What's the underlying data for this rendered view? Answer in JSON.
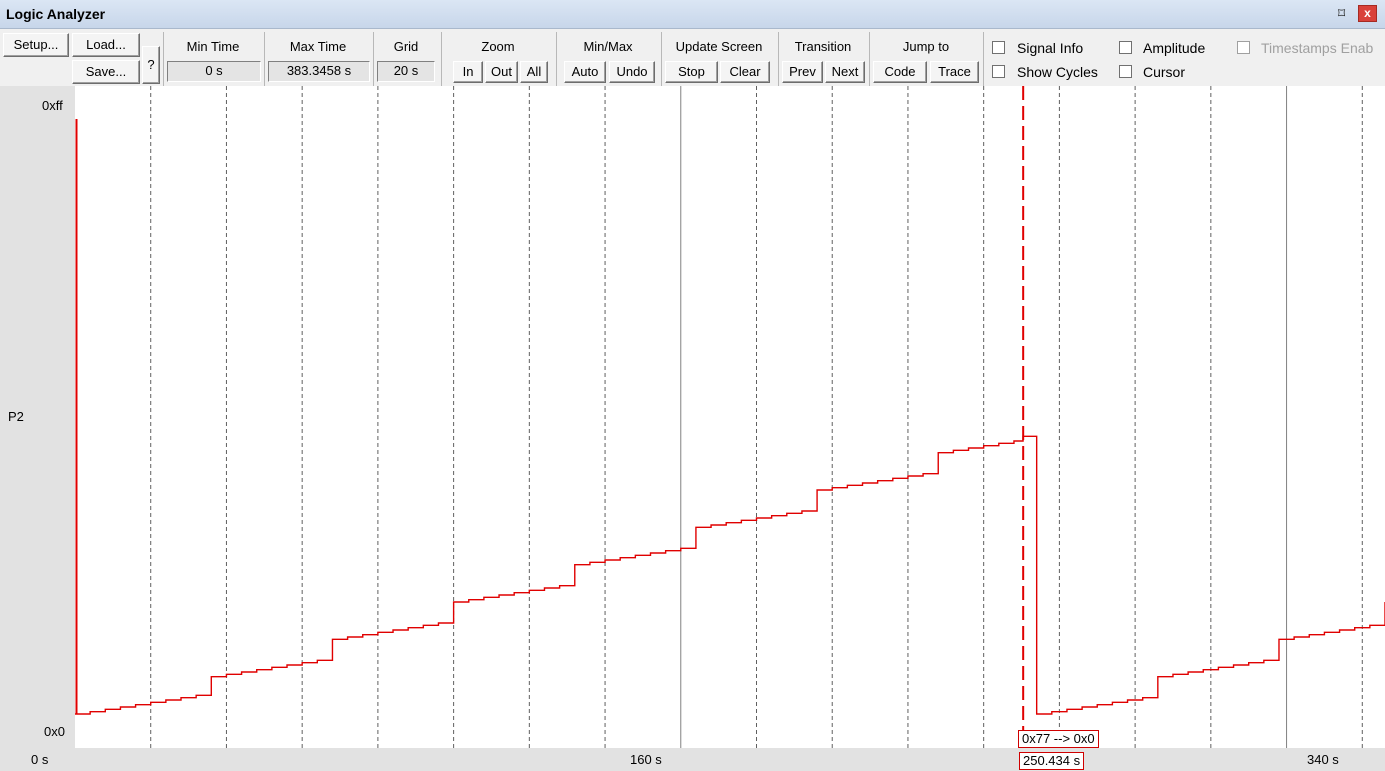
{
  "window": {
    "title": "Logic Analyzer",
    "pin_glyph": "⌑",
    "close_glyph": "x"
  },
  "toolbar": {
    "setup": "Setup...",
    "load": "Load...",
    "save": "Save...",
    "help": "?",
    "min_time": {
      "label": "Min Time",
      "value": "0 s"
    },
    "max_time": {
      "label": "Max Time",
      "value": "383.3458 s"
    },
    "grid": {
      "label": "Grid",
      "value": "20 s"
    },
    "zoom": {
      "label": "Zoom",
      "in": "In",
      "out": "Out",
      "all": "All"
    },
    "minmax": {
      "label": "Min/Max",
      "auto": "Auto",
      "undo": "Undo"
    },
    "update_screen": {
      "label": "Update Screen",
      "stop": "Stop",
      "clear": "Clear"
    },
    "transition": {
      "label": "Transition",
      "prev": "Prev",
      "next": "Next"
    },
    "jump_to": {
      "label": "Jump to",
      "code": "Code",
      "trace": "Trace"
    },
    "checkboxes": {
      "signal_info": "Signal Info",
      "amplitude": "Amplitude",
      "timestamps": "Timestamps Enab",
      "show_cycles": "Show Cycles",
      "cursor": "Cursor"
    }
  },
  "signal": {
    "name": "P2",
    "y_max_label": "0xff",
    "y_min_label": "0x0",
    "color": "#e00000"
  },
  "time_axis": {
    "labels": [
      "0 s",
      "160 s",
      "340 s"
    ]
  },
  "cursor": {
    "time_label": "250.434 s",
    "transition_label": "0x77 --> 0x0",
    "color": "#e00000"
  },
  "chart_data": {
    "type": "line",
    "step": true,
    "xlabel": "",
    "ylabel": "",
    "xlim": [
      0,
      346
    ],
    "ylim": [
      0,
      255
    ],
    "grid_major": 20,
    "cursor_x": 250.434,
    "x": [
      0,
      4,
      8,
      12,
      16,
      20,
      24,
      28,
      32,
      36,
      40,
      44,
      48,
      52,
      56,
      60,
      64,
      68,
      72,
      76,
      80,
      84,
      88,
      92,
      96,
      100,
      104,
      108,
      112,
      116,
      120,
      124,
      128,
      132,
      136,
      140,
      144,
      148,
      152,
      156,
      160,
      164,
      168,
      172,
      176,
      180,
      184,
      188,
      192,
      196,
      200,
      204,
      208,
      212,
      216,
      220,
      224,
      228,
      232,
      236,
      240,
      244,
      248,
      250.4,
      254,
      258,
      262,
      266,
      270,
      274,
      278,
      282,
      286,
      290,
      294,
      298,
      302,
      306,
      310,
      314,
      318,
      322,
      326,
      330,
      334,
      338,
      342,
      346
    ],
    "y": [
      0,
      1,
      2,
      3,
      4,
      5,
      6,
      7,
      8,
      16,
      17,
      18,
      19,
      20,
      21,
      22,
      23,
      32,
      33,
      34,
      35,
      36,
      37,
      38,
      39,
      48,
      49,
      50,
      51,
      52,
      53,
      54,
      55,
      64,
      65,
      66,
      67,
      68,
      69,
      70,
      71,
      80,
      81,
      82,
      83,
      84,
      85,
      86,
      87,
      96,
      97,
      98,
      99,
      100,
      101,
      102,
      103,
      112,
      113,
      114,
      115,
      116,
      117,
      119,
      0,
      1,
      2,
      3,
      4,
      5,
      6,
      7,
      16,
      17,
      18,
      19,
      20,
      21,
      22,
      23,
      32,
      33,
      34,
      35,
      36,
      37,
      38,
      48
    ]
  }
}
